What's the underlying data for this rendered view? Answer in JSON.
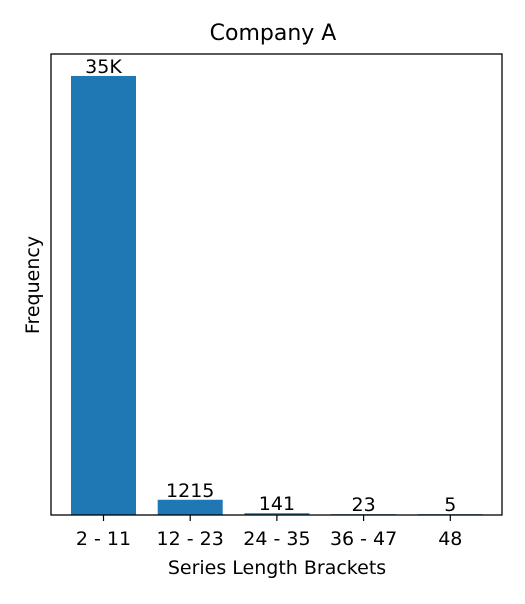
{
  "chart_data": {
    "type": "bar",
    "title": "Company A",
    "xlabel": "Series Length Brackets",
    "ylabel": "Frequency",
    "categories": [
      "2 - 11",
      "12 - 23",
      "24 - 35",
      "36 - 47",
      "48"
    ],
    "values": [
      35000,
      1215,
      141,
      23,
      5
    ],
    "data_labels": [
      "35K",
      "1215",
      "141",
      "23",
      "5"
    ],
    "ylim": [
      0,
      36750
    ],
    "y_ticks_visible": false,
    "grid": false,
    "legend": "none",
    "bar_color": "#1f77b4"
  }
}
